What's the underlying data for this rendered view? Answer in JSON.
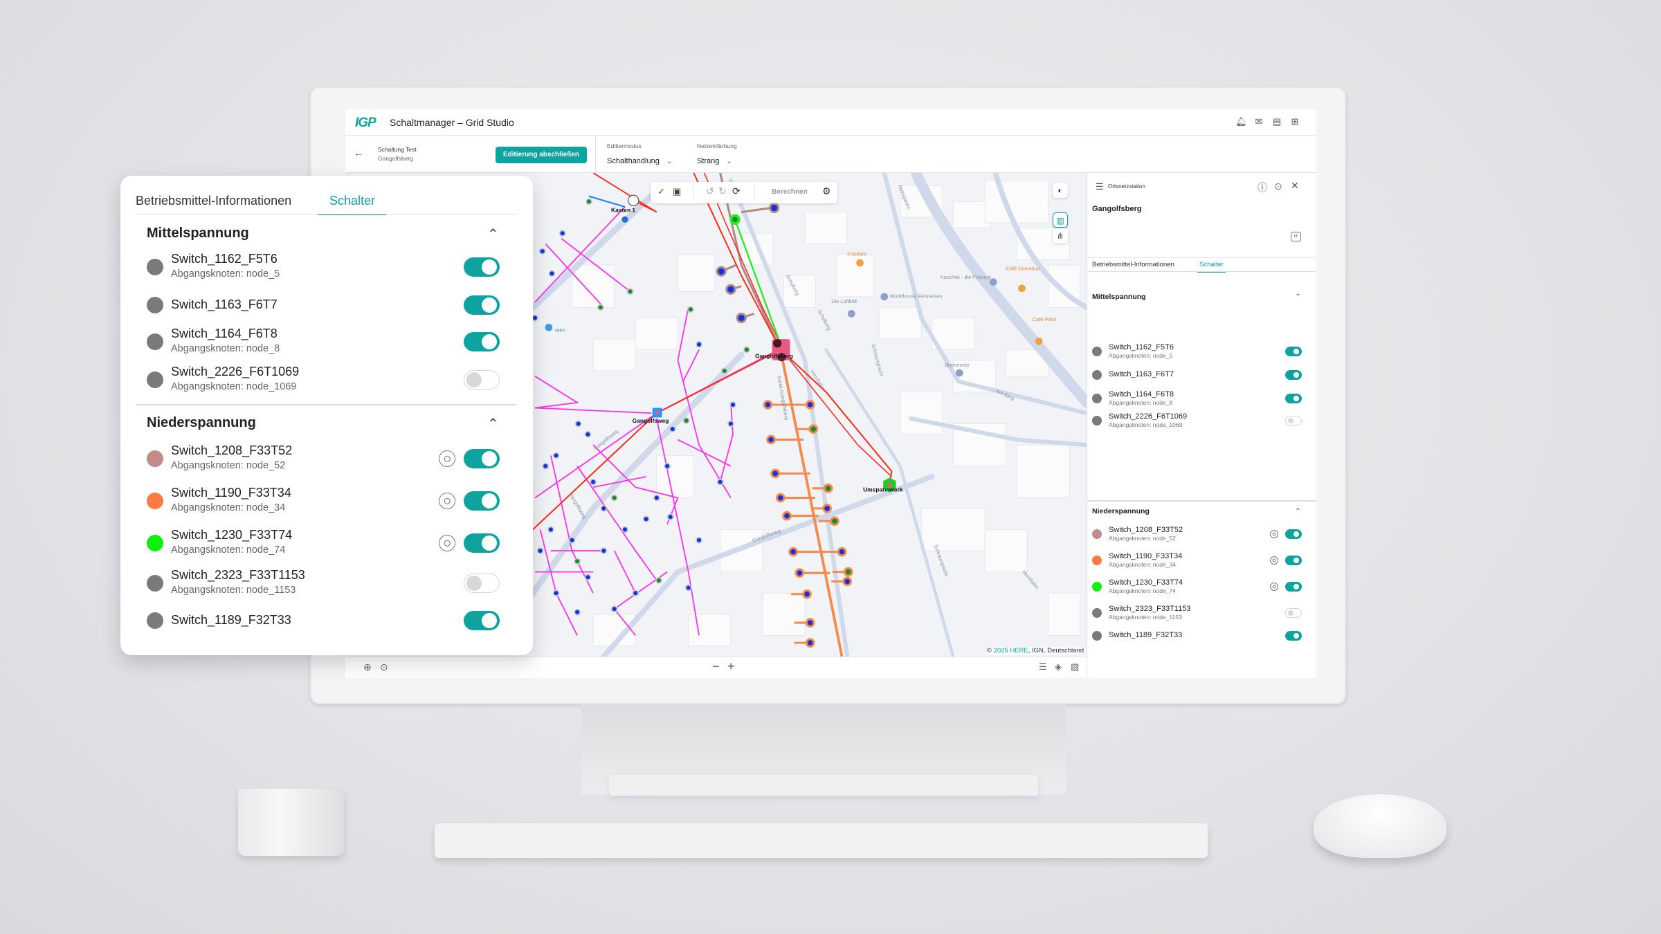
{
  "app": {
    "logo": "IGP",
    "title": "Schaltmanager – Grid Studio",
    "header_icons": [
      "bell-icon",
      "mail-icon",
      "document-icon",
      "grid-icon"
    ]
  },
  "toolbar": {
    "schaltung_title": "Schaltung Test",
    "schaltung_sub": "Gangolfsberg",
    "finish_button": "Editierung abschließen",
    "editiermodus_label": "Editiermodus",
    "editiermodus_value": "Schalthandlung",
    "netzeinfaerbung_label": "Netzeinfärbung",
    "netzeinfaerbung_value": "Strang"
  },
  "map_toolbar": {
    "calculate": "Berechnen"
  },
  "map": {
    "node_labels": {
      "kasten": "Kasten 1",
      "station": "Gangolfsberg",
      "gangolfsweg": "Gangolfsweg",
      "umspannwerk": "Umspannwerk"
    },
    "streets": [
      "Abteigarten",
      "Schulberg",
      "Schulberg",
      "Schraungracht",
      "Am Berg",
      "Sankt Gangolfsberg",
      "Vennbahn",
      "Gangolfsweg",
      "Gangolfsweg",
      "Gangolfsweg",
      "Schraungracht",
      "Vennbahn"
    ],
    "pois": [
      "Il Gelato",
      "Café Cornelius",
      "Café Paris",
      "Kaschke - die Friseure",
      "Worldhouse Fernreisen",
      "Die Luftbild",
      "Brammertz",
      "reev"
    ],
    "copyright_prefix": "© ",
    "copyright_link": "2025 HERE",
    "copyright_rest": ", IGN, Deutschland",
    "colors": {
      "mv_line": "#ff2a1a",
      "green_line": "#22ee22",
      "lv_orange": "#f58a4b",
      "magenta": "#ff33ee",
      "brown": "#b08a84",
      "node_blue": "#1133dd",
      "station": "#e85a85"
    }
  },
  "panel": {
    "type_label": "Ortsnetzstation",
    "name": "Gangolfsberg",
    "tabs": [
      {
        "label": "Betriebsmittel-Informationen",
        "active": false
      },
      {
        "label": "Schalter",
        "active": true
      }
    ],
    "groups": [
      {
        "title": "Mittelspannung",
        "switches": [
          {
            "name": "Switch_1162_F5T6",
            "sub": "Abgangsknoten: node_5",
            "color": "#7a7a7a",
            "on": true,
            "target": false
          },
          {
            "name": "Switch_1163_F6T7",
            "sub": "",
            "color": "#7a7a7a",
            "on": true,
            "target": false
          },
          {
            "name": "Switch_1164_F6T8",
            "sub": "Abgangsknoten: node_8",
            "color": "#7a7a7a",
            "on": true,
            "target": false
          },
          {
            "name": "Switch_2226_F6T1069",
            "sub": "Abgangsknoten: node_1069",
            "color": "#7a7a7a",
            "on": false,
            "target": false
          }
        ]
      },
      {
        "title": "Niederspannung",
        "switches": [
          {
            "name": "Switch_1208_F33T52",
            "sub": "Abgangsknoten: node_52",
            "color": "#c28a88",
            "on": true,
            "target": true
          },
          {
            "name": "Switch_1190_F33T34",
            "sub": "Abgangsknoten: node_34",
            "color": "#ff7a45",
            "on": true,
            "target": true
          },
          {
            "name": "Switch_1230_F33T74",
            "sub": "Abgangsknoten: node_74",
            "color": "#11ee11",
            "on": true,
            "target": true
          },
          {
            "name": "Switch_2323_F33T1153",
            "sub": "Abgangsknoten: node_1153",
            "color": "#7a7a7a",
            "on": false,
            "target": false
          },
          {
            "name": "Switch_1189_F32T33",
            "sub": "",
            "color": "#7a7a7a",
            "on": true,
            "target": false
          }
        ]
      }
    ]
  },
  "accent": "#0fa3a0"
}
